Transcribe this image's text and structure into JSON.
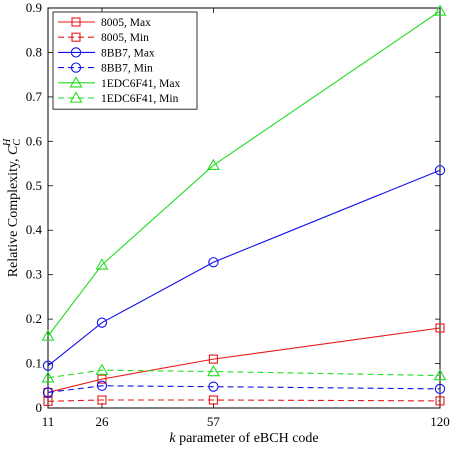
{
  "chart_data": {
    "type": "line",
    "title": "",
    "xlabel": {
      "prefix": "k",
      "rest": " parameter of eBCH code"
    },
    "ylabel": {
      "text": "Relative Complexity, ",
      "symbol": "C",
      "sub": "C",
      "sup": "H"
    },
    "x": [
      11,
      26,
      57,
      120
    ],
    "xticks": [
      11,
      26,
      57,
      120
    ],
    "xlim": [
      11,
      120
    ],
    "ylim": [
      0,
      0.9
    ],
    "yticks": [
      0,
      0.1,
      0.2,
      0.3,
      0.4,
      0.5,
      0.6,
      0.7,
      0.8,
      0.9
    ],
    "ytick_labels": [
      "0",
      "0.1",
      "0.2",
      "0.3",
      "0.4",
      "0.5",
      "0.6",
      "0.7",
      "0.8",
      "0.9"
    ],
    "grid": false,
    "legend_position": "top-left",
    "series": [
      {
        "name": "8005, Max",
        "color": "#e8191a",
        "dash": "solid",
        "marker": "square",
        "values": [
          0.035,
          0.065,
          0.11,
          0.18
        ]
      },
      {
        "name": "8005, Min",
        "color": "#e8191a",
        "dash": "dashed",
        "marker": "square",
        "values": [
          0.015,
          0.018,
          0.018,
          0.016
        ]
      },
      {
        "name": "8BB7, Max",
        "color": "#1010ee",
        "dash": "solid",
        "marker": "circle",
        "values": [
          0.095,
          0.192,
          0.328,
          0.535
        ]
      },
      {
        "name": "8BB7, Min",
        "color": "#1010ee",
        "dash": "dashed",
        "marker": "circle",
        "values": [
          0.035,
          0.05,
          0.048,
          0.043
        ]
      },
      {
        "name": "1EDC6F41, Max",
        "color": "#22dd22",
        "dash": "solid",
        "marker": "triangle",
        "values": [
          0.162,
          0.322,
          0.546,
          0.893
        ]
      },
      {
        "name": "1EDC6F41, Min",
        "color": "#22dd22",
        "dash": "dashed",
        "marker": "triangle",
        "values": [
          0.068,
          0.085,
          0.082,
          0.073
        ]
      }
    ]
  }
}
